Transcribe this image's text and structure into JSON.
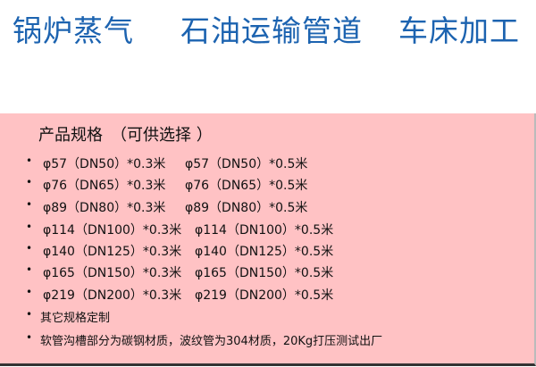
{
  "headline": [
    "锅炉蒸气",
    "石油运输管道",
    "车床加工"
  ],
  "panel": {
    "title": "产品规格　（可供选择 ）",
    "specs": [
      [
        "φ57（DN50）*0.3米",
        "φ57（DN50）*0.5米"
      ],
      [
        "φ76（DN65）*0.3米",
        "φ76（DN65）*0.5米"
      ],
      [
        "φ89（DN80）*0.3米",
        "φ89（DN80）*0.5米"
      ],
      [
        "φ114（DN100）*0.3米",
        "φ114（DN100）*0.5米"
      ],
      [
        "φ140（DN125）*0.3米",
        "φ140（DN125）*0.5米"
      ],
      [
        "φ165（DN150）*0.3米",
        "φ165（DN150）*0.5米"
      ],
      [
        "φ219（DN200）*0.3米",
        "φ219（DN200）*0.5米"
      ]
    ],
    "notes": [
      "其它规格定制",
      "软管沟槽部分为碳钢材质，波纹管为304材质，20Kg打压测试出厂"
    ],
    "bullet": "•"
  },
  "colors": {
    "headline": "#1c63b0",
    "panel_bg": "#ffc2c4"
  }
}
